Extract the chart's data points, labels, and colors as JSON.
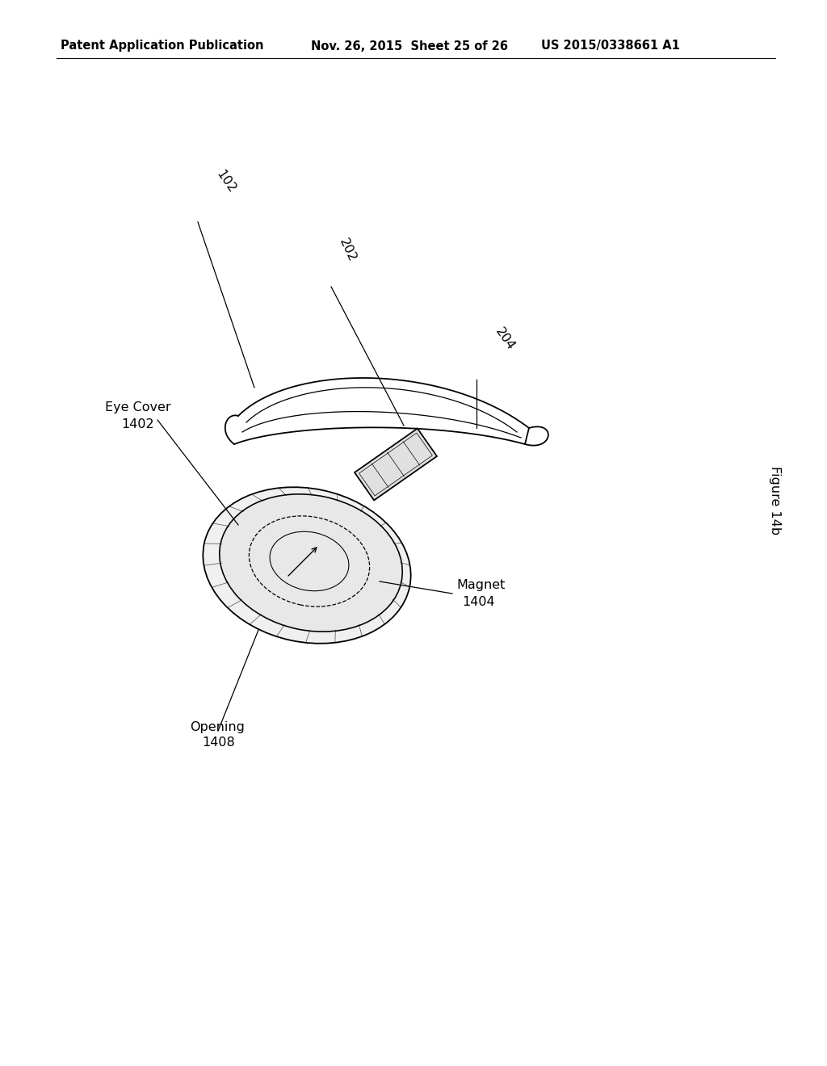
{
  "header_left": "Patent Application Publication",
  "header_mid": "Nov. 26, 2015  Sheet 25 of 26",
  "header_right": "US 2015/0338661 A1",
  "figure_label": "Figure 14b",
  "bg_color": "#ffffff",
  "line_color": "#000000",
  "header_fontsize": 10.5,
  "label_fontsize": 11.5
}
